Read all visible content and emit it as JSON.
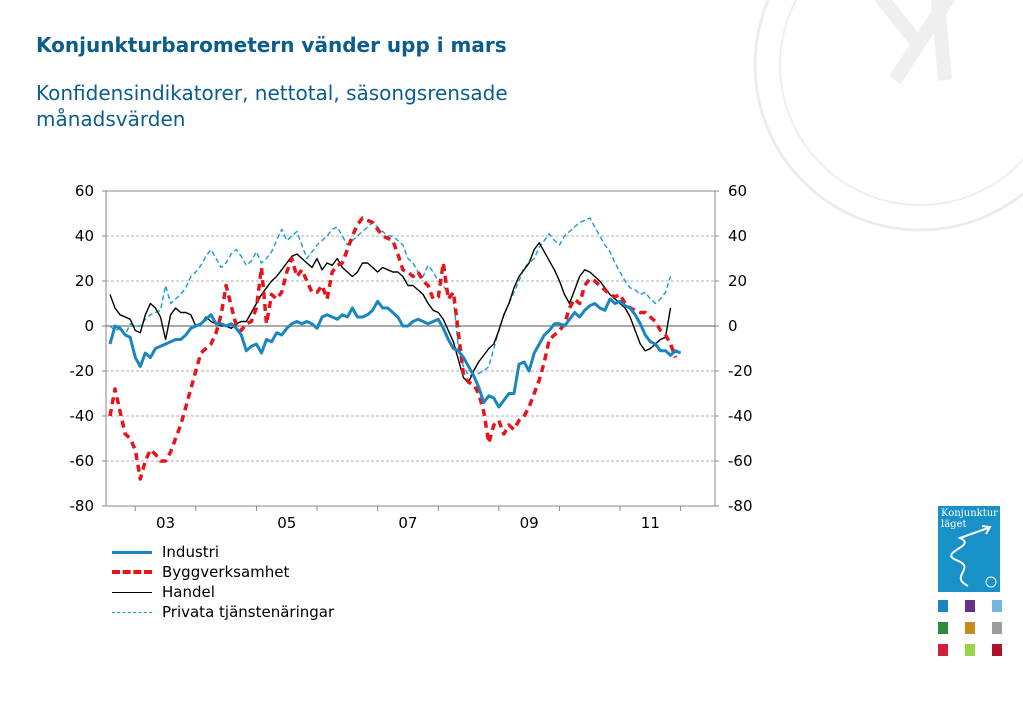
{
  "title": "Konjunkturbarometern vänder upp i mars",
  "subtitle": "Konfidensindikatorer, nettotal, säsongsrensade månadsvärden",
  "colors": {
    "title": "#0b5d8c",
    "industri": "#1a86c0",
    "bygg": "#e8141c",
    "handel": "#000000",
    "tjanst": "#1a9ad6"
  },
  "logo": {
    "text": "Konjunktur läget",
    "icon": "konjunkturlaget-logo-icon"
  },
  "watermark": {
    "icon": "ki-seal-icon"
  },
  "mini_icon_colors": [
    "#1a86c0",
    "#6b2f86",
    "#76b6dc",
    "#2d8a3e",
    "#c88a1c",
    "#9c9c9c",
    "#d21f3c",
    "#9ad24a",
    "#b0102c"
  ],
  "chart_data": {
    "type": "line",
    "ylim": [
      -80,
      60
    ],
    "yticks": [
      "60",
      "40",
      "20",
      "0",
      "-20",
      "-40",
      "-60",
      "-80"
    ],
    "x_tick_labels": [
      "03",
      "05",
      "07",
      "09",
      "11"
    ],
    "grid": "horizontal, dashed",
    "legend_position": "bottom",
    "x_start": "2002-08",
    "x_end": "2012-03",
    "series": [
      {
        "name": "Industri",
        "style": "solid-thick",
        "values": [
          -8,
          0,
          -1,
          -4,
          -5,
          -14,
          -18,
          -12,
          -14,
          -10,
          -9,
          -8,
          -7,
          -6,
          -6,
          -4,
          -1,
          0,
          1,
          3,
          5,
          1,
          1,
          0,
          1,
          -1,
          -4,
          -11,
          -9,
          -8,
          -12,
          -6,
          -7,
          -3,
          -4,
          -1,
          1,
          2,
          1,
          2,
          1,
          -1,
          4,
          5,
          4,
          3,
          5,
          4,
          8,
          4,
          4,
          5,
          7,
          11,
          8,
          8,
          6,
          4,
          0,
          0,
          2,
          3,
          2,
          1,
          2,
          3,
          -1,
          -6,
          -10,
          -11,
          -14,
          -18,
          -22,
          -27,
          -34,
          -31,
          -32,
          -36,
          -33,
          -30,
          -30,
          -17,
          -16,
          -20,
          -12,
          -8,
          -4,
          -2,
          1,
          1,
          0,
          3,
          6,
          4,
          7,
          9,
          10,
          8,
          7,
          12,
          10,
          11,
          9,
          8,
          5,
          1,
          -4,
          -7,
          -8,
          -11,
          -11,
          -13,
          -11,
          -12
        ]
      },
      {
        "name": "Byggverksamhet",
        "style": "dashed-thick",
        "values": [
          -40,
          -28,
          -38,
          -48,
          -50,
          -55,
          -68,
          -60,
          -55,
          -57,
          -60,
          -60,
          -56,
          -50,
          -44,
          -36,
          -28,
          -20,
          -12,
          -10,
          -8,
          -3,
          5,
          18,
          9,
          0,
          -2,
          1,
          2,
          8,
          26,
          1,
          14,
          12,
          15,
          24,
          30,
          22,
          25,
          20,
          15,
          15,
          18,
          12,
          24,
          27,
          28,
          34,
          40,
          45,
          48,
          47,
          46,
          43,
          40,
          39,
          38,
          32,
          25,
          24,
          22,
          24,
          20,
          18,
          12,
          13,
          28,
          12,
          15,
          -3,
          -22,
          -25,
          -26,
          -30,
          -38,
          -52,
          -44,
          -42,
          -48,
          -44,
          -46,
          -42,
          -40,
          -36,
          -30,
          -24,
          -16,
          -6,
          -4,
          -2,
          1,
          8,
          12,
          10,
          18,
          21,
          20,
          18,
          16,
          14,
          13,
          14,
          10,
          8,
          7,
          6,
          6,
          4,
          2,
          -2,
          -4,
          -8,
          -14
        ]
      },
      {
        "name": "Handel",
        "style": "solid-thin",
        "values": [
          14,
          8,
          5,
          4,
          3,
          -2,
          -3,
          5,
          10,
          8,
          4,
          -6,
          5,
          8,
          6,
          6,
          5,
          0,
          1,
          4,
          2,
          1,
          0,
          0,
          -1,
          1,
          2,
          2,
          6,
          10,
          14,
          17,
          20,
          22,
          25,
          28,
          31,
          32,
          30,
          28,
          26,
          30,
          25,
          28,
          27,
          30,
          26,
          24,
          22,
          24,
          28,
          28,
          26,
          24,
          26,
          25,
          24,
          24,
          22,
          18,
          18,
          16,
          14,
          10,
          7,
          6,
          3,
          -2,
          -7,
          -15,
          -23,
          -25,
          -20,
          -16,
          -13,
          -10,
          -8,
          -2,
          5,
          10,
          17,
          22,
          25,
          28,
          34,
          37,
          33,
          29,
          25,
          20,
          14,
          10,
          16,
          22,
          25,
          24,
          22,
          20,
          17,
          14,
          12,
          10,
          8,
          4,
          -2,
          -8,
          -11,
          -10,
          -8,
          -6,
          -5,
          8
        ]
      },
      {
        "name": "Privata tjänstenäringar",
        "style": "dashed-thin",
        "values": [
          0,
          -2,
          -1,
          -4,
          1,
          0,
          0,
          3,
          5,
          6,
          7,
          18,
          10,
          12,
          14,
          17,
          22,
          24,
          27,
          31,
          34,
          30,
          26,
          28,
          32,
          34,
          31,
          27,
          29,
          33,
          28,
          30,
          33,
          38,
          43,
          38,
          40,
          42,
          36,
          30,
          33,
          36,
          38,
          40,
          43,
          44,
          40,
          36,
          38,
          40,
          42,
          44,
          46,
          44,
          42,
          40,
          40,
          38,
          36,
          30,
          28,
          24,
          22,
          27,
          24,
          20,
          18,
          14,
          12,
          -10,
          -18,
          -22,
          -22,
          -21,
          -20,
          -18,
          -10,
          -2,
          5,
          10,
          15,
          20,
          26,
          28,
          30,
          35,
          38,
          41,
          38,
          36,
          40,
          42,
          44,
          46,
          47,
          48,
          44,
          40,
          36,
          33,
          28,
          24,
          20,
          17,
          16,
          14,
          15,
          12,
          10,
          12,
          15,
          22
        ]
      }
    ]
  }
}
